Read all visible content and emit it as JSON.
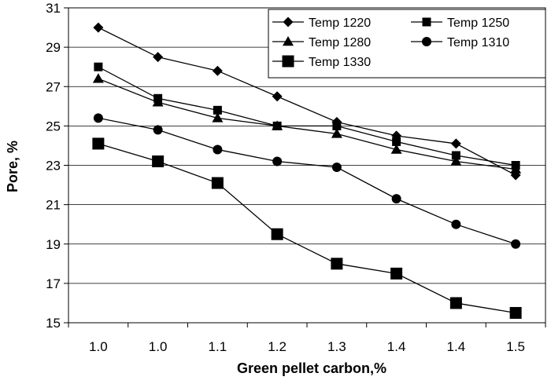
{
  "chart_data": {
    "type": "line",
    "title": "",
    "xlabel": "Green pellet carbon,%",
    "ylabel": "Pore, %",
    "ylim": [
      15,
      31
    ],
    "yticks": [
      "15",
      "17",
      "19",
      "21",
      "23",
      "25",
      "27",
      "29",
      "31"
    ],
    "categories": [
      "1.0",
      "1.0",
      "1.1",
      "1.2",
      "1.3",
      "1.4",
      "1.4",
      "1.5"
    ],
    "grid": "horizontal",
    "legend_position": "top-right",
    "series": [
      {
        "name": "Temp 1220",
        "marker": "diamond",
        "values": [
          30.0,
          28.5,
          27.8,
          26.5,
          25.2,
          24.5,
          24.1,
          22.5
        ]
      },
      {
        "name": "Temp 1250",
        "marker": "small-square",
        "values": [
          28.0,
          26.4,
          25.8,
          25.0,
          25.0,
          24.2,
          23.5,
          23.0
        ]
      },
      {
        "name": "Temp 1280",
        "marker": "triangle",
        "values": [
          27.4,
          26.2,
          25.4,
          25.0,
          24.6,
          23.8,
          23.2,
          22.8
        ]
      },
      {
        "name": "Temp 1310",
        "marker": "circle",
        "values": [
          25.4,
          24.8,
          23.8,
          23.2,
          22.9,
          21.3,
          20.0,
          19.0
        ]
      },
      {
        "name": "Temp 1330",
        "marker": "large-square",
        "values": [
          24.1,
          23.2,
          22.1,
          19.5,
          18.0,
          17.5,
          16.0,
          15.5
        ]
      }
    ]
  }
}
